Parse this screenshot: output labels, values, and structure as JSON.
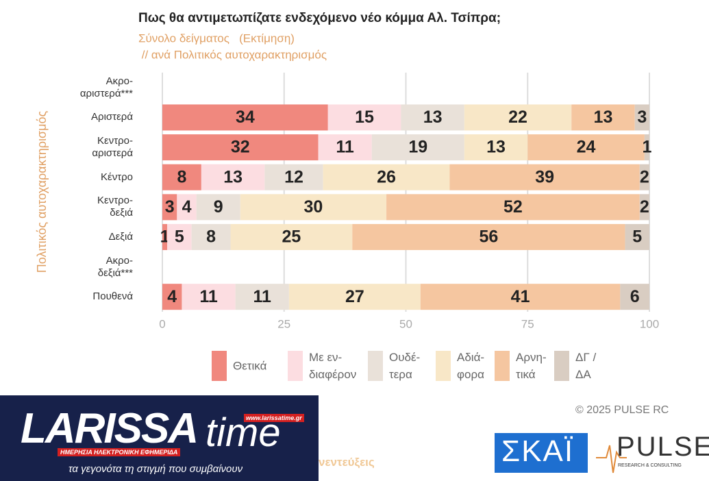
{
  "chart_data": {
    "type": "stacked-barh",
    "title": "Πως θα αντιμετωπίζατε ενδεχόμενο νέο κόμμα Αλ. Τσίπρα;",
    "subtitle": [
      "Σύνολο δείγματος   (Εκτίμηση)",
      " // ανά Πολιτικός αυτοχαρακτηρισμός"
    ],
    "y_label": "Πολιτικός αυτοχαρακτηρισμός",
    "categories": [
      "Ακρο-\nαριστερά***",
      "Αριστερά",
      "Κεντρο-\nαριστερά",
      "Κέντρο",
      "Κεντρο-\nδεξιά",
      "Δεξιά",
      "Ακρο-\nδεξιά***",
      "Πουθενά"
    ],
    "series": [
      {
        "name": "Θετικά",
        "color": "#f0887e",
        "values": [
          null,
          34,
          32,
          8,
          3,
          1,
          null,
          4
        ]
      },
      {
        "name": "Με εν-\nδιαφέρον",
        "color": "#fcdde1",
        "values": [
          null,
          15,
          11,
          13,
          4,
          5,
          null,
          11
        ]
      },
      {
        "name": "Ουδέ-\nτερα",
        "color": "#e9e1d9",
        "values": [
          null,
          13,
          19,
          12,
          9,
          8,
          null,
          11
        ]
      },
      {
        "name": "Αδιά-\nφορα",
        "color": "#f8e7c7",
        "values": [
          null,
          22,
          13,
          26,
          30,
          25,
          null,
          27
        ]
      },
      {
        "name": "Αρνη-\nτικά",
        "color": "#f5c6a0",
        "values": [
          null,
          13,
          24,
          39,
          52,
          56,
          null,
          41
        ]
      },
      {
        "name": "ΔΓ /\nΔΑ",
        "color": "#d9cdc2",
        "values": [
          null,
          3,
          1,
          2,
          2,
          5,
          null,
          6
        ]
      }
    ],
    "xlim": [
      0,
      100
    ],
    "xticks": [
      0,
      25,
      50,
      75,
      100
    ],
    "grid": true
  },
  "footer": {
    "copyright": "©  2025  PULSE RC",
    "logo_name": "LARISSA",
    "logo_name2": "time",
    "logo_url": "www.larissatime.gr",
    "logo_tag": "ΗΜΕΡΗΣΙΑ ΗΛΕΚΤΡΟΝΙΚΗ ΕΦΗΜΕΡΙΔΑ",
    "logo_slogan": "τα γεγονότα τη στιγμή που συμβαίνουν",
    "partial_text": "νεντεύξεις",
    "skai": "ΣΚΑΪ",
    "pulse": "PULSE",
    "pulse_sub": "RESEARCH & CONSULTING"
  }
}
